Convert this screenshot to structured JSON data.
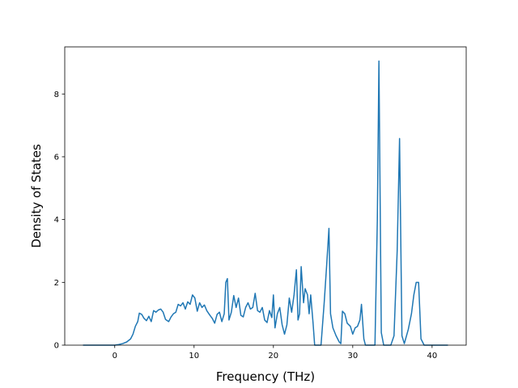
{
  "chart_data": {
    "type": "line",
    "title": "",
    "xlabel": "Frequency (THz)",
    "ylabel": "Density of States",
    "xlim": [
      -6.3,
      44.3
    ],
    "ylim": [
      0,
      9.5
    ],
    "xticks": [
      0,
      10,
      20,
      30,
      40
    ],
    "yticks": [
      0,
      2,
      4,
      6,
      8
    ],
    "grid": false,
    "legend": "none",
    "series": [
      {
        "color": "#1f77b4",
        "points": [
          [
            -4.0,
            0
          ],
          [
            -2.0,
            0
          ],
          [
            0.0,
            0
          ],
          [
            0.5,
            0.02
          ],
          [
            1.0,
            0.05
          ],
          [
            1.5,
            0.1
          ],
          [
            2.0,
            0.2
          ],
          [
            2.3,
            0.35
          ],
          [
            2.6,
            0.6
          ],
          [
            2.9,
            0.75
          ],
          [
            3.1,
            1.02
          ],
          [
            3.4,
            0.98
          ],
          [
            3.7,
            0.85
          ],
          [
            4.0,
            0.78
          ],
          [
            4.3,
            0.92
          ],
          [
            4.6,
            0.75
          ],
          [
            4.9,
            1.1
          ],
          [
            5.2,
            1.05
          ],
          [
            5.5,
            1.12
          ],
          [
            5.8,
            1.15
          ],
          [
            6.1,
            1.05
          ],
          [
            6.4,
            0.82
          ],
          [
            6.8,
            0.75
          ],
          [
            7.1,
            0.9
          ],
          [
            7.4,
            1.0
          ],
          [
            7.7,
            1.05
          ],
          [
            8.0,
            1.3
          ],
          [
            8.3,
            1.25
          ],
          [
            8.6,
            1.35
          ],
          [
            8.9,
            1.15
          ],
          [
            9.2,
            1.38
          ],
          [
            9.5,
            1.3
          ],
          [
            9.8,
            1.6
          ],
          [
            10.1,
            1.5
          ],
          [
            10.4,
            1.08
          ],
          [
            10.7,
            1.35
          ],
          [
            11.0,
            1.2
          ],
          [
            11.3,
            1.28
          ],
          [
            11.6,
            1.1
          ],
          [
            12.0,
            0.95
          ],
          [
            12.3,
            0.85
          ],
          [
            12.6,
            0.7
          ],
          [
            12.9,
            0.98
          ],
          [
            13.2,
            1.05
          ],
          [
            13.5,
            0.75
          ],
          [
            13.8,
            1.0
          ],
          [
            14.0,
            2.0
          ],
          [
            14.2,
            2.12
          ],
          [
            14.4,
            0.8
          ],
          [
            14.7,
            1.05
          ],
          [
            15.0,
            1.58
          ],
          [
            15.3,
            1.2
          ],
          [
            15.6,
            1.5
          ],
          [
            15.9,
            0.95
          ],
          [
            16.2,
            0.9
          ],
          [
            16.5,
            1.2
          ],
          [
            16.8,
            1.35
          ],
          [
            17.1,
            1.15
          ],
          [
            17.4,
            1.2
          ],
          [
            17.7,
            1.65
          ],
          [
            18.0,
            1.1
          ],
          [
            18.3,
            1.05
          ],
          [
            18.6,
            1.2
          ],
          [
            18.9,
            0.8
          ],
          [
            19.2,
            0.72
          ],
          [
            19.5,
            1.1
          ],
          [
            19.8,
            0.88
          ],
          [
            20.0,
            1.6
          ],
          [
            20.2,
            0.55
          ],
          [
            20.5,
            1.0
          ],
          [
            20.8,
            1.2
          ],
          [
            21.1,
            0.65
          ],
          [
            21.4,
            0.35
          ],
          [
            21.7,
            0.65
          ],
          [
            22.0,
            1.5
          ],
          [
            22.3,
            1.05
          ],
          [
            22.6,
            1.6
          ],
          [
            22.9,
            2.4
          ],
          [
            23.1,
            0.8
          ],
          [
            23.3,
            1.0
          ],
          [
            23.5,
            2.5
          ],
          [
            23.8,
            1.35
          ],
          [
            24.0,
            1.8
          ],
          [
            24.3,
            1.6
          ],
          [
            24.5,
            1.0
          ],
          [
            24.7,
            1.6
          ],
          [
            25.0,
            0.7
          ],
          [
            25.2,
            0
          ],
          [
            26.0,
            0
          ],
          [
            26.4,
            1.35
          ],
          [
            26.7,
            2.5
          ],
          [
            27.0,
            3.72
          ],
          [
            27.2,
            1.0
          ],
          [
            27.5,
            0.55
          ],
          [
            27.9,
            0.3
          ],
          [
            28.3,
            0.1
          ],
          [
            28.5,
            0.05
          ],
          [
            28.7,
            1.08
          ],
          [
            29.0,
            1.0
          ],
          [
            29.3,
            0.7
          ],
          [
            29.7,
            0.6
          ],
          [
            30.0,
            0.35
          ],
          [
            30.3,
            0.55
          ],
          [
            30.6,
            0.6
          ],
          [
            30.9,
            0.8
          ],
          [
            31.1,
            1.3
          ],
          [
            31.4,
            0.2
          ],
          [
            31.6,
            0
          ],
          [
            32.8,
            0
          ],
          [
            33.1,
            4.0
          ],
          [
            33.3,
            9.05
          ],
          [
            33.6,
            0.4
          ],
          [
            33.9,
            0
          ],
          [
            34.8,
            0
          ],
          [
            35.2,
            0.3
          ],
          [
            35.6,
            3.0
          ],
          [
            35.9,
            6.58
          ],
          [
            36.2,
            0.3
          ],
          [
            36.5,
            0.05
          ],
          [
            37.0,
            0.5
          ],
          [
            37.4,
            1.0
          ],
          [
            37.7,
            1.6
          ],
          [
            38.0,
            2.0
          ],
          [
            38.3,
            2.0
          ],
          [
            38.6,
            0.2
          ],
          [
            39.0,
            0
          ],
          [
            42.0,
            0
          ]
        ]
      }
    ]
  }
}
